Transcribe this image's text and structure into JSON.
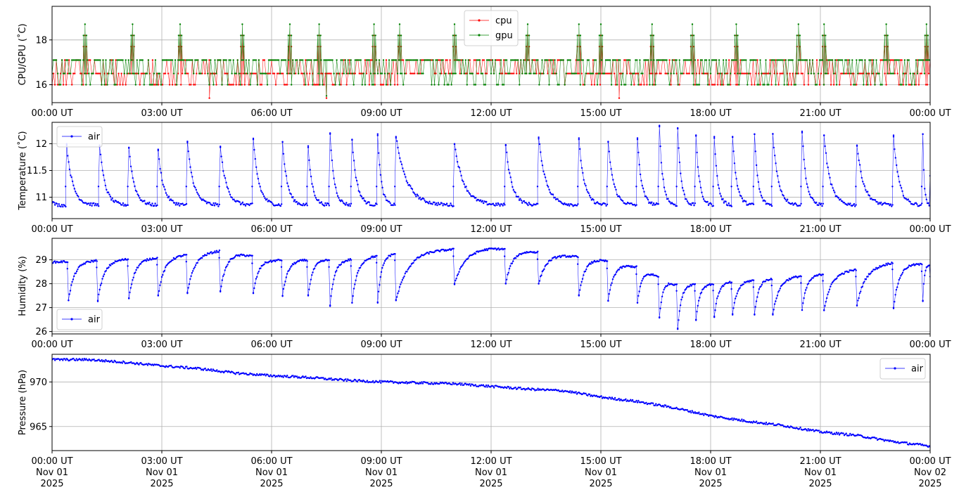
{
  "chart_data": [
    {
      "type": "line",
      "ylabel": "CPU/GPU (˚C)",
      "ylim": [
        15.2,
        19.5
      ],
      "yticks": [
        16,
        18
      ],
      "grid": true,
      "legend_position": "top-center",
      "x_tick_labels": [
        "00:00 UT",
        "03:00 UT",
        "06:00 UT",
        "09:00 UT",
        "12:00 UT",
        "15:00 UT",
        "18:00 UT",
        "21:00 UT",
        "00:00 UT"
      ],
      "series": [
        {
          "name": "cpu",
          "color": "#ff0000",
          "base": 16.5,
          "levels": [
            16.0,
            16.5,
            17.1
          ],
          "spike_value": 18.2,
          "spike_hours": [
            0.9,
            2.2,
            3.5,
            5.2,
            6.5,
            7.3,
            8.8,
            9.5,
            11.0,
            13.0,
            14.4,
            15.0,
            16.4,
            17.5,
            18.7,
            20.4,
            21.1,
            22.8,
            23.9
          ],
          "min_value": 15.4,
          "min_hours": [
            4.3,
            7.5,
            15.5
          ]
        },
        {
          "name": "gpu",
          "color": "#008000",
          "base": 17.1,
          "levels": [
            16.0,
            16.5,
            17.1
          ],
          "spike_value": 18.7,
          "spike_hours": [
            0.9,
            2.2,
            3.5,
            5.2,
            6.5,
            7.3,
            8.8,
            9.5,
            11.0,
            13.0,
            14.4,
            15.0,
            16.4,
            17.5,
            18.7,
            20.4,
            21.1,
            22.8,
            23.9
          ],
          "min_value": 15.5,
          "min_hours": [
            7.5
          ]
        }
      ]
    },
    {
      "type": "line",
      "ylabel": "Temperature (˚C)",
      "ylim": [
        10.6,
        12.4
      ],
      "yticks": [
        11.0,
        11.5,
        12.0
      ],
      "grid": true,
      "legend_position": "top-left",
      "x_tick_labels": [
        "00:00 UT",
        "03:00 UT",
        "06:00 UT",
        "09:00 UT",
        "12:00 UT",
        "15:00 UT",
        "18:00 UT",
        "21:00 UT",
        "00:00 UT"
      ],
      "series": [
        {
          "name": "air",
          "color": "#0000ff",
          "peaks": [
            [
              0.4,
              11.97
            ],
            [
              1.3,
              11.97
            ],
            [
              2.1,
              11.93
            ],
            [
              2.9,
              11.87
            ],
            [
              3.7,
              12.02
            ],
            [
              4.6,
              11.93
            ],
            [
              5.5,
              12.08
            ],
            [
              6.3,
              12.03
            ],
            [
              7.0,
              11.93
            ],
            [
              7.6,
              12.18
            ],
            [
              8.2,
              12.08
            ],
            [
              8.9,
              12.18
            ],
            [
              9.4,
              12.13
            ],
            [
              11.0,
              11.99
            ],
            [
              12.4,
              11.98
            ],
            [
              13.3,
              12.12
            ],
            [
              14.4,
              12.08
            ],
            [
              15.2,
              12.03
            ],
            [
              16.0,
              12.08
            ],
            [
              16.6,
              12.32
            ],
            [
              17.1,
              12.28
            ],
            [
              17.6,
              12.16
            ],
            [
              18.1,
              12.13
            ],
            [
              18.6,
              12.12
            ],
            [
              19.2,
              12.18
            ],
            [
              19.7,
              12.18
            ],
            [
              20.5,
              12.23
            ],
            [
              21.1,
              12.16
            ],
            [
              22.0,
              11.97
            ],
            [
              23.0,
              12.13
            ],
            [
              23.8,
              12.18
            ]
          ],
          "baseline": 10.85
        }
      ]
    },
    {
      "type": "line",
      "ylabel": "Humidity (%)",
      "ylim": [
        25.9,
        29.9
      ],
      "yticks": [
        26,
        27,
        28,
        29
      ],
      "grid": true,
      "legend_position": "bottom-left",
      "x_tick_labels": [
        "00:00 UT",
        "03:00 UT",
        "06:00 UT",
        "09:00 UT",
        "12:00 UT",
        "15:00 UT",
        "18:00 UT",
        "21:00 UT",
        "00:00 UT"
      ],
      "series": [
        {
          "name": "air",
          "color": "#0000ff",
          "dips": [
            [
              0.45,
              27.3
            ],
            [
              1.25,
              27.3
            ],
            [
              2.1,
              27.4
            ],
            [
              2.9,
              27.5
            ],
            [
              3.7,
              27.6
            ],
            [
              4.6,
              27.7
            ],
            [
              5.5,
              27.6
            ],
            [
              6.3,
              27.5
            ],
            [
              7.0,
              27.5
            ],
            [
              7.6,
              27.1
            ],
            [
              8.2,
              27.2
            ],
            [
              8.9,
              27.2
            ],
            [
              9.4,
              27.3
            ],
            [
              11.0,
              28.0
            ],
            [
              12.4,
              28.0
            ],
            [
              13.3,
              28.0
            ],
            [
              14.4,
              27.5
            ],
            [
              15.2,
              27.3
            ],
            [
              16.0,
              27.2
            ],
            [
              16.6,
              26.6
            ],
            [
              17.1,
              26.1
            ],
            [
              17.6,
              26.5
            ],
            [
              18.1,
              26.6
            ],
            [
              18.6,
              26.7
            ],
            [
              19.2,
              26.7
            ],
            [
              19.7,
              26.7
            ],
            [
              20.5,
              26.9
            ],
            [
              21.1,
              26.9
            ],
            [
              22.0,
              27.1
            ],
            [
              23.0,
              27.0
            ],
            [
              23.8,
              27.3
            ]
          ],
          "recovery": [
            [
              0.0,
              28.9
            ],
            [
              3.0,
              29.1
            ],
            [
              4.7,
              29.4
            ],
            [
              6.0,
              29.0
            ],
            [
              8.0,
              29.0
            ],
            [
              10.0,
              29.4
            ],
            [
              12.0,
              29.5
            ],
            [
              13.5,
              29.3
            ],
            [
              15.0,
              29.0
            ],
            [
              16.0,
              28.7
            ],
            [
              17.0,
              28.0
            ],
            [
              18.0,
              28.0
            ],
            [
              19.5,
              28.2
            ],
            [
              21.0,
              28.4
            ],
            [
              22.0,
              28.6
            ],
            [
              23.0,
              28.9
            ],
            [
              24.0,
              28.8
            ]
          ]
        }
      ]
    },
    {
      "type": "line",
      "ylabel": "Pressure (hPa)",
      "ylim": [
        962.3,
        973.1
      ],
      "yticks": [
        965,
        970
      ],
      "grid": true,
      "legend_position": "top-right",
      "x_tick_labels": [
        "00:00 UT\nNov 01\n2025",
        "03:00 UT\nNov 01\n2025",
        "06:00 UT\nNov 01\n2025",
        "09:00 UT\nNov 01\n2025",
        "12:00 UT\nNov 01\n2025",
        "15:00 UT\nNov 01\n2025",
        "18:00 UT\nNov 01\n2025",
        "21:00 UT\nNov 01\n2025",
        "00:00 UT\nNov 02\n2025"
      ],
      "series": [
        {
          "name": "air",
          "color": "#0000ff",
          "points": [
            [
              0.0,
              972.5
            ],
            [
              1.0,
              972.5
            ],
            [
              2.0,
              972.2
            ],
            [
              3.0,
              971.8
            ],
            [
              4.0,
              971.5
            ],
            [
              5.0,
              971.0
            ],
            [
              6.0,
              970.7
            ],
            [
              7.0,
              970.5
            ],
            [
              8.0,
              970.2
            ],
            [
              9.0,
              970.0
            ],
            [
              10.0,
              969.9
            ],
            [
              11.0,
              969.8
            ],
            [
              12.0,
              969.5
            ],
            [
              13.0,
              969.2
            ],
            [
              14.0,
              969.0
            ],
            [
              15.0,
              968.3
            ],
            [
              16.0,
              967.8
            ],
            [
              17.0,
              967.1
            ],
            [
              18.0,
              966.2
            ],
            [
              19.0,
              965.6
            ],
            [
              20.0,
              965.1
            ],
            [
              21.0,
              964.4
            ],
            [
              22.0,
              964.0
            ],
            [
              23.0,
              963.3
            ],
            [
              24.0,
              962.8
            ]
          ]
        }
      ]
    }
  ]
}
